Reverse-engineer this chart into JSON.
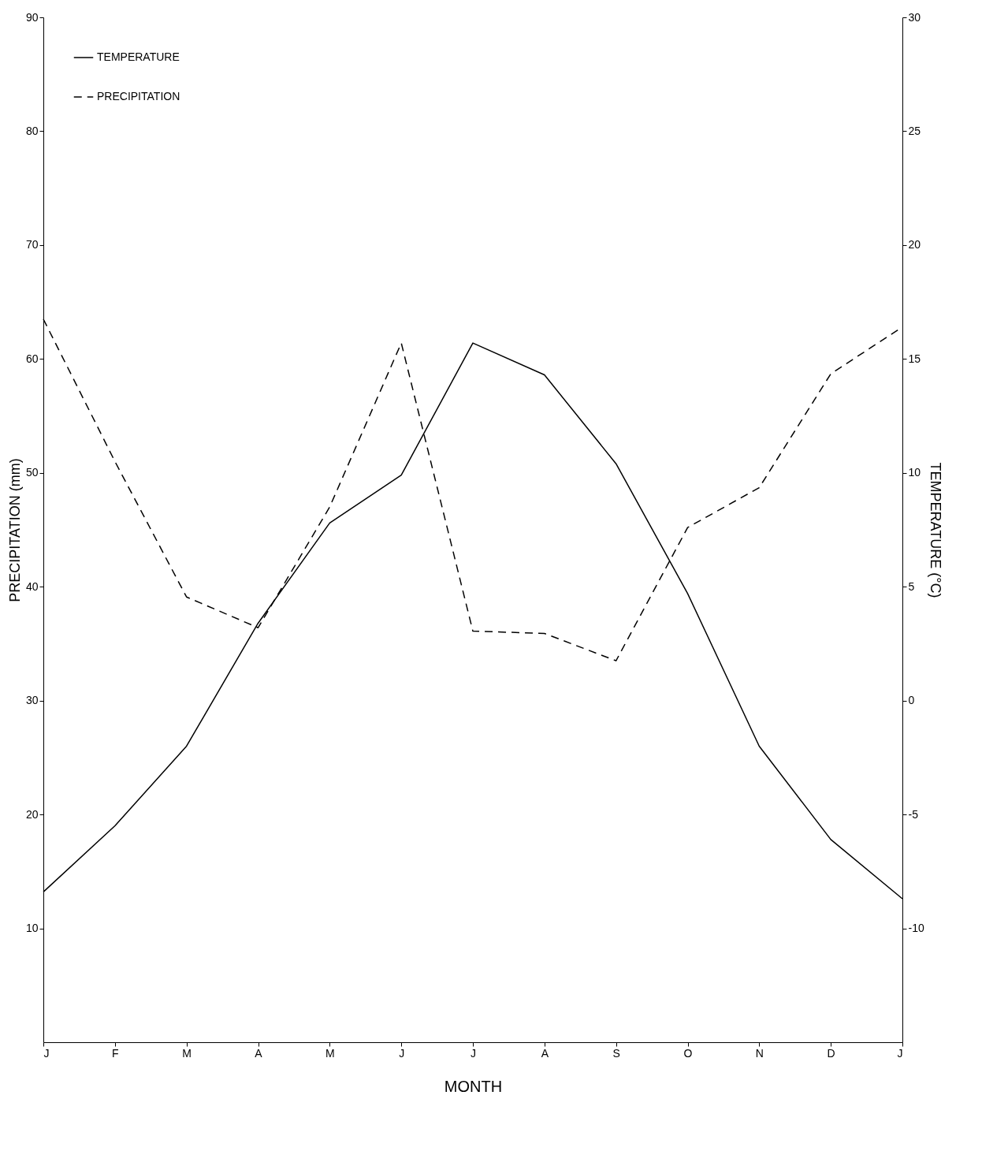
{
  "chart_data": {
    "type": "line",
    "xlabel": "MONTH",
    "ylabel": "PRECIPITATION (mm)",
    "y2label": "TEMPERATURE (°C)",
    "categories": [
      "J",
      "F",
      "M",
      "A",
      "M",
      "J",
      "J",
      "A",
      "S",
      "O",
      "N",
      "D",
      "J"
    ],
    "series": [
      {
        "name": "TEMPERATURE",
        "color": "#000000",
        "axis": "y2",
        "line_style": "solid",
        "values": [
          -8.4,
          -5.5,
          -2.0,
          3.4,
          7.8,
          9.9,
          15.7,
          14.3,
          10.4,
          4.7,
          -2.0,
          -6.1,
          -8.7
        ]
      },
      {
        "name": "PRECIPITATION",
        "color": "#000000",
        "line_style": "dashed",
        "values": [
          63.5,
          51,
          39.1,
          36.4,
          47,
          61.4,
          36.1,
          35.9,
          33.5,
          45.2,
          48.7,
          58.7,
          62.8
        ]
      }
    ],
    "ylim": [
      0,
      90
    ],
    "yticks": [
      10,
      20,
      30,
      40,
      50,
      60,
      70,
      80,
      90
    ],
    "y2lim": [
      -15,
      30
    ],
    "y2ticks": [
      -10,
      -5,
      0,
      5,
      10,
      15,
      20,
      25,
      30
    ],
    "grid": false,
    "legend": "top left",
    "marker": "none"
  }
}
